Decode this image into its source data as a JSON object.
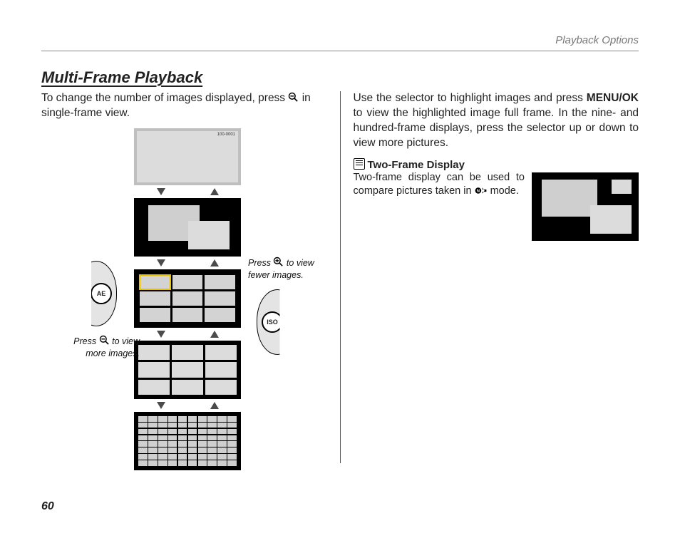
{
  "page": {
    "running_head": "Playback Options",
    "number": "60",
    "section_title": "Multi-Frame Playback"
  },
  "left": {
    "para_a": "To change the number of images displayed, press",
    "para_b": " in single-frame view.",
    "caption_more_a": "Press",
    "caption_more_b": "to view more images.",
    "caption_fewer_a": "Press",
    "caption_fewer_b": "to view fewer images.",
    "btn_left": "AE",
    "btn_right": "ISO",
    "frame_label": "100-0001"
  },
  "right": {
    "para_a": "Use the selector to highlight images and press ",
    "para_menu": "MENU/OK",
    "para_b": " to view the highlighted image full frame. In the nine- and hundred-frame displays, press the selector up or down to view more pictures.",
    "note_title": "Two-Frame Display",
    "note_body_a": "Two-frame display can be used to compare pictures taken in ",
    "note_body_b": " mode."
  },
  "style": {
    "page_bg": "#ffffff",
    "text_color": "#222222",
    "muted": "#777777",
    "rule": "#888888",
    "panel_bg": "#000000",
    "thumb_bg": "#d3d3d3",
    "arrow_color": "#4b4b4b",
    "highlight": "#e6c200",
    "disc_fill": "#e4e4e4"
  }
}
